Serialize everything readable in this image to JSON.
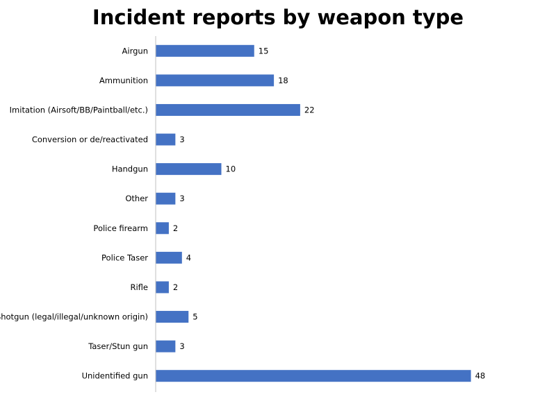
{
  "chart_data": {
    "type": "bar",
    "orientation": "horizontal",
    "title": "Incident reports by weapon type",
    "xlabel": "",
    "ylabel": "",
    "categories": [
      "Airgun",
      "Ammunition",
      "Imitation (Airsoft/BB/Paintball/etc.)",
      "Conversion or de/reactivated",
      "Handgun",
      "Other",
      "Police firearm",
      "Police Taser",
      "Rifle",
      "Shotgun (legal/illegal/unknown origin)",
      "Taser/Stun gun",
      "Unidentified gun"
    ],
    "values": [
      15,
      18,
      22,
      3,
      10,
      3,
      2,
      4,
      2,
      5,
      3,
      48
    ],
    "xlim": [
      0,
      60
    ],
    "grid": false,
    "legend": "none",
    "data_labels": true,
    "bar_color": "#4472C4",
    "axis_color": "#BFBFBF"
  }
}
